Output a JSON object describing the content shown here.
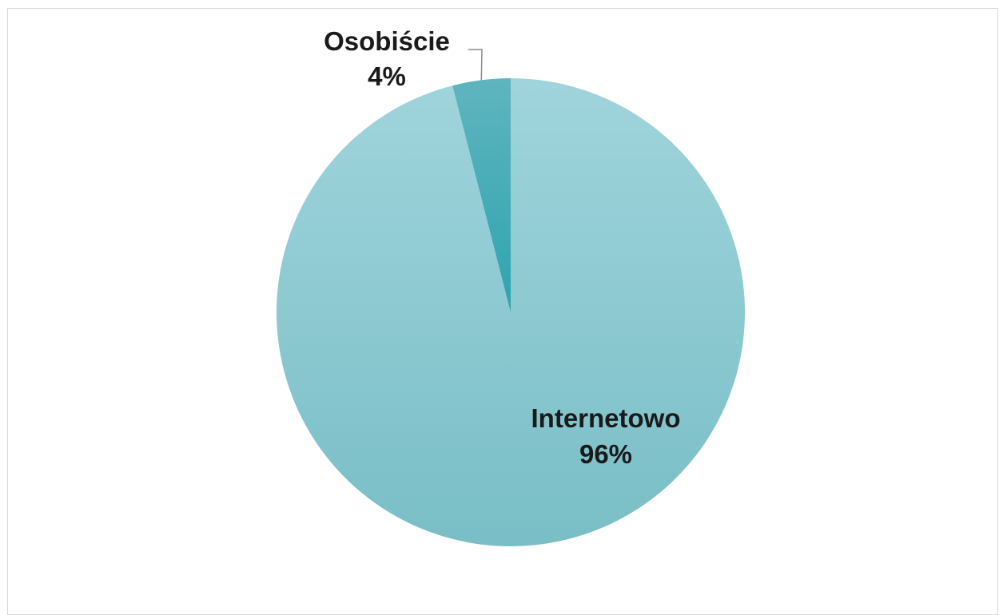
{
  "chart_data": {
    "type": "pie",
    "title": "",
    "start_angle_deg": 0,
    "direction": "clockwise",
    "slices": [
      {
        "label": "Internetowo",
        "value": 96,
        "value_label": "96%",
        "color_top": "#a0d4dc",
        "color_bottom": "#79bec6"
      },
      {
        "label": "Osobiście",
        "value": 4,
        "value_label": "4%",
        "color_top": "#5fb5bf",
        "color_bottom": "#2ea4ae"
      }
    ],
    "border_color": "#d9d9d9",
    "leader_line_color": "#8c8c8c"
  }
}
